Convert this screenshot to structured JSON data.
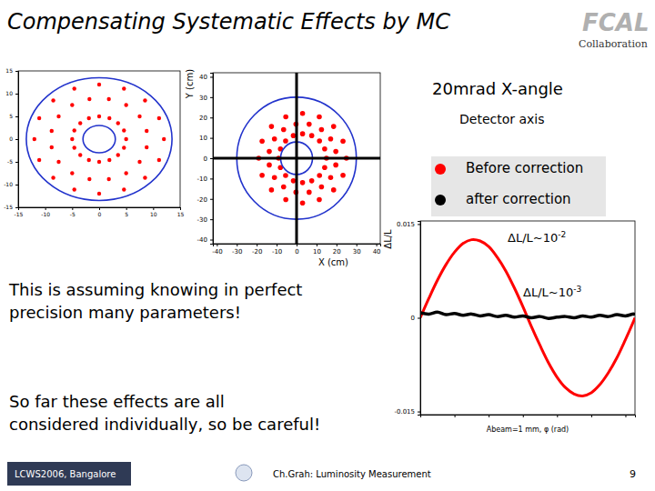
{
  "slide": {
    "title": "Compensating Systematic Effects by MC",
    "logo": [
      "FCAL",
      "Collaboration"
    ],
    "note_1": [
      "This is assuming knowing in perfect",
      "precision many parameters!"
    ],
    "note_2": [
      "So far these effects are all",
      "considered individually, so be careful!"
    ],
    "footer": {
      "left": "LCWS2006, Bangalore",
      "center": "Ch.Grah: Luminosity Measurement",
      "page": "9"
    }
  },
  "chart_data": [
    {
      "type": "scatter",
      "xlim": [
        -15,
        15
      ],
      "xticks": [
        -15,
        -10,
        -5,
        0,
        5,
        10,
        15
      ],
      "ylim": [
        -15,
        15
      ],
      "yticks": [
        -15,
        -10,
        -5,
        0,
        5,
        10,
        15
      ],
      "circles": {
        "radii": [
          3,
          13.5
        ]
      },
      "series": [
        {
          "color": "#ff0000",
          "x": [
            5,
            4.6,
            3.5,
            1.9,
            0,
            -1.9,
            -3.5,
            -4.6,
            -5,
            -4.6,
            -3.5,
            -1.9,
            0,
            1.9,
            3.5,
            4.6,
            8.8,
            7.5,
            5,
            1.8,
            -1.8,
            -5,
            -7.5,
            -8.8,
            -8.8,
            -7.5,
            -5,
            -1.8,
            1.8,
            5,
            7.5,
            8.8,
            12,
            11.1,
            8.5,
            4.6,
            0,
            -4.6,
            -8.5,
            -11.1,
            -12,
            -11.1,
            -8.5,
            -4.6,
            0,
            4.6,
            8.5,
            11.1
          ],
          "y": [
            0,
            1.9,
            3.5,
            4.6,
            5,
            4.6,
            3.5,
            1.9,
            0,
            -1.9,
            -3.5,
            -4.6,
            -5,
            -4.6,
            -3.5,
            -1.9,
            1.8,
            5,
            7.5,
            8.8,
            8.8,
            7.5,
            5,
            1.8,
            -1.8,
            -5,
            -7.5,
            -8.8,
            -8.8,
            -7.5,
            -5,
            -1.8,
            0,
            4.6,
            8.5,
            11.1,
            12,
            11.1,
            8.5,
            4.6,
            0,
            -4.6,
            -8.5,
            -11.1,
            -12,
            -11.1,
            -8.5,
            -4.6
          ]
        }
      ]
    },
    {
      "type": "scatter",
      "xlabel": "X (cm)",
      "ylabel": "Y (cm)",
      "xlim": [
        -42,
        42
      ],
      "xticks": [
        -40,
        -30,
        -20,
        -10,
        0,
        10,
        20,
        30,
        40
      ],
      "ylim": [
        -42,
        42
      ],
      "yticks": [
        -40,
        -30,
        -20,
        -10,
        0,
        10,
        20,
        30,
        40
      ],
      "circles": {
        "radii": [
          8,
          30
        ]
      },
      "detector_axis": {
        "x": 0,
        "y": 0
      },
      "annotations": [
        "20mrad X-angle",
        "Detector axis"
      ],
      "series": [
        {
          "color": "#ff0000",
          "x": [
            15,
            14.1,
            11.5,
            7.6,
            3,
            -1.6,
            -5.5,
            -8.1,
            -9,
            -8.1,
            -5.5,
            -1.6,
            3,
            7.6,
            11.5,
            14.1,
            19.7,
            17.1,
            12.5,
            6.3,
            -0.3,
            -6.5,
            -11.1,
            -13.7,
            -13.7,
            -11.1,
            -6.5,
            -0.3,
            6.3,
            12.5,
            17.1,
            19.7,
            25,
            23.3,
            18.6,
            11.4,
            3,
            -5.4,
            -12.6,
            -17.3,
            -19,
            -17.3,
            -12.6,
            -5.4,
            3,
            11.4,
            18.6,
            23.3
          ],
          "y": [
            0,
            4.6,
            8.5,
            11.1,
            12,
            11.1,
            8.5,
            4.6,
            0,
            -4.6,
            -8.5,
            -11.1,
            -12,
            -11.1,
            -8.5,
            -4.6,
            3.3,
            9.5,
            14.1,
            16.7,
            16.7,
            14.1,
            9.5,
            3.3,
            -3.3,
            -9.5,
            -14.1,
            -16.7,
            -16.7,
            -14.1,
            -9.5,
            -3.3,
            0,
            8.4,
            15.6,
            20.3,
            22,
            20.3,
            15.6,
            8.4,
            0,
            -8.4,
            -15.6,
            -20.3,
            -22,
            -20.3,
            -15.6,
            -8.4
          ]
        }
      ]
    },
    {
      "type": "line",
      "xlabel": "Abeam=1 mm, φ (rad)",
      "ylabel": "ΔL/L",
      "xlim": [
        0,
        6.28
      ],
      "xticks": [
        0,
        1,
        2,
        3,
        4,
        5,
        6
      ],
      "ylim": [
        -0.0155,
        0.0155
      ],
      "yticks": [
        -0.015,
        0,
        0.015
      ],
      "tick_labels": "y",
      "legend": "top",
      "annotations": [
        {
          "text": "ΔL/L~10",
          "sup": "-2"
        },
        {
          "text": "ΔL/L~10",
          "sup": "-3"
        }
      ],
      "x": [
        0,
        0.25,
        0.5,
        0.75,
        1,
        1.25,
        1.5,
        1.75,
        2,
        2.25,
        2.5,
        2.75,
        3,
        3.25,
        3.5,
        3.75,
        4,
        4.25,
        4.5,
        4.75,
        5,
        5.25,
        5.5,
        5.75,
        6,
        6.25,
        6.28
      ],
      "series": [
        {
          "name": "Before correction",
          "color": "#ff0000",
          "values": [
            0,
            0.0031,
            0.006,
            0.0085,
            0.0105,
            0.0119,
            0.0125,
            0.0123,
            0.0114,
            0.0097,
            0.0075,
            0.0048,
            0.0018,
            -0.0014,
            -0.0044,
            -0.0072,
            -0.0095,
            -0.0112,
            -0.0122,
            -0.0125,
            -0.012,
            -0.0107,
            -0.0088,
            -0.0064,
            -0.0035,
            -0.0004,
            0
          ]
        },
        {
          "name": "after correction",
          "color": "#000000",
          "values": [
            0.0008,
            0.0006,
            0.0009,
            0.0005,
            0.0007,
            0.0004,
            0.0006,
            0.0003,
            0.0005,
            0.0002,
            0.0004,
            0.0001,
            0.0003,
            0,
            0.0002,
            -0.0001,
            0.0001,
            0.0002,
            0,
            0.0003,
            0.0001,
            0.0004,
            0.0002,
            0.0005,
            0.0003,
            0.0006,
            0.0004
          ]
        }
      ]
    }
  ]
}
